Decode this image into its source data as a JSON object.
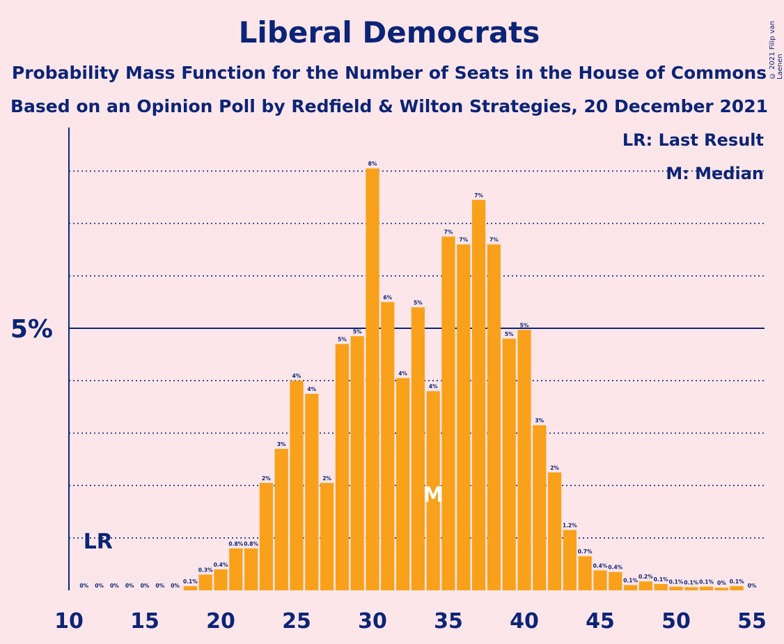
{
  "title": "Liberal Democrats",
  "subtitle1": "Probability Mass Function for the Number of Seats in the House of Commons",
  "subtitle2": "Based on an Opinion Poll by Redfield & Wilton Strategies, 20 December 2021",
  "copyright": "© 2021 Filip van Laenen",
  "colors": {
    "background": "#fde6ea",
    "bar": "#f9a11b",
    "text": "#0b2477"
  },
  "chart_data": {
    "type": "bar",
    "title": "Liberal Democrats",
    "x": [
      11,
      12,
      13,
      14,
      15,
      16,
      17,
      18,
      19,
      20,
      21,
      22,
      23,
      24,
      25,
      26,
      27,
      28,
      29,
      30,
      31,
      32,
      33,
      34,
      35,
      36,
      37,
      38,
      39,
      40,
      41,
      42,
      43,
      44,
      45,
      46,
      47,
      48,
      49,
      50,
      51,
      52,
      53,
      54,
      55
    ],
    "values": [
      0,
      0,
      0,
      0,
      0,
      0,
      0,
      0.08,
      0.3,
      0.4,
      0.8,
      0.8,
      2.05,
      2.7,
      4.0,
      3.75,
      2.05,
      4.7,
      4.85,
      8.05,
      5.5,
      4.05,
      5.4,
      3.8,
      6.75,
      6.6,
      7.45,
      6.6,
      4.8,
      4.97,
      3.15,
      2.25,
      1.15,
      0.65,
      0.38,
      0.35,
      0.1,
      0.17,
      0.12,
      0.07,
      0.06,
      0.07,
      0.05,
      0.08,
      0
    ],
    "labels": [
      "0%",
      "0%",
      "0%",
      "0%",
      "0%",
      "0%",
      "0%",
      "0.1%",
      "0.3%",
      "0.4%",
      "0.8%",
      "0.8%",
      "2%",
      "3%",
      "4%",
      "4%",
      "2%",
      "5%",
      "5%",
      "8%",
      "6%",
      "4%",
      "5%",
      "4%",
      "7%",
      "7%",
      "7%",
      "7%",
      "5%",
      "5%",
      "3%",
      "2%",
      "1.2%",
      "0.7%",
      "0.4%",
      "0.4%",
      "0.1%",
      "0.2%",
      "0.1%",
      "0.1%",
      "0.1%",
      "0.1%",
      "0%",
      "0.1%",
      "0%"
    ],
    "xticks": [
      10,
      15,
      20,
      25,
      30,
      35,
      40,
      45,
      50,
      55
    ],
    "xtick_labels": [
      "10",
      "15",
      "20",
      "25",
      "30",
      "35",
      "40",
      "45",
      "50",
      "55"
    ],
    "ytick_label": "5%",
    "ytick_value": 5,
    "ylim": [
      0,
      8.8
    ],
    "gridlines": [
      1,
      2,
      3,
      4,
      6,
      7,
      8
    ],
    "last_result": {
      "seat": 11,
      "label": "LR"
    },
    "median": {
      "seat": 34,
      "label": "M"
    },
    "legend": [
      "LR: Last Result",
      "M: Median"
    ],
    "legend_position": "top-right"
  }
}
